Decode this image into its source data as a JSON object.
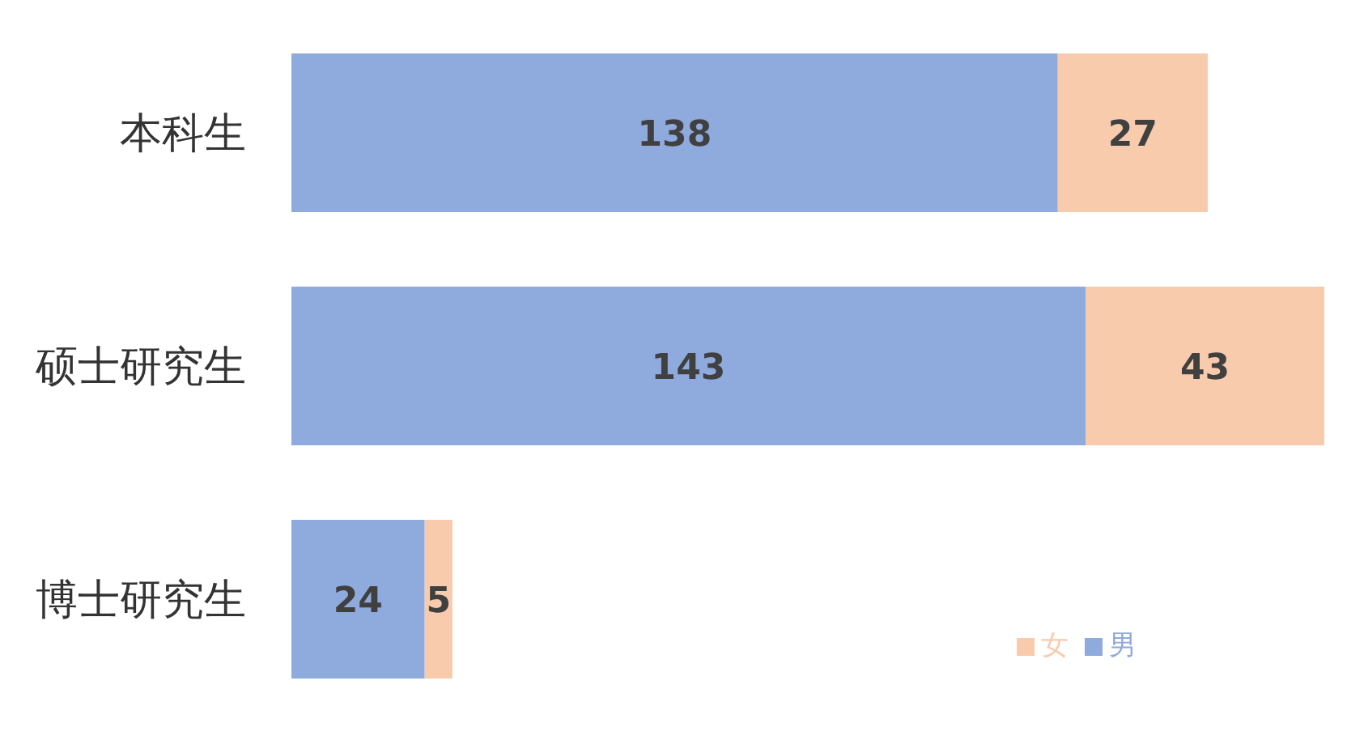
{
  "chart_data": {
    "type": "bar",
    "orientation": "horizontal",
    "stacked": true,
    "categories": [
      "本科生",
      "硕士研究生",
      "博士研究生"
    ],
    "series": [
      {
        "name": "男",
        "color": "#8faadc",
        "values": [
          138,
          143,
          24
        ]
      },
      {
        "name": "女",
        "color": "#f8cbad",
        "values": [
          27,
          43,
          5
        ]
      }
    ],
    "data_labels": true,
    "legend": "bottom right",
    "grid": false
  }
}
